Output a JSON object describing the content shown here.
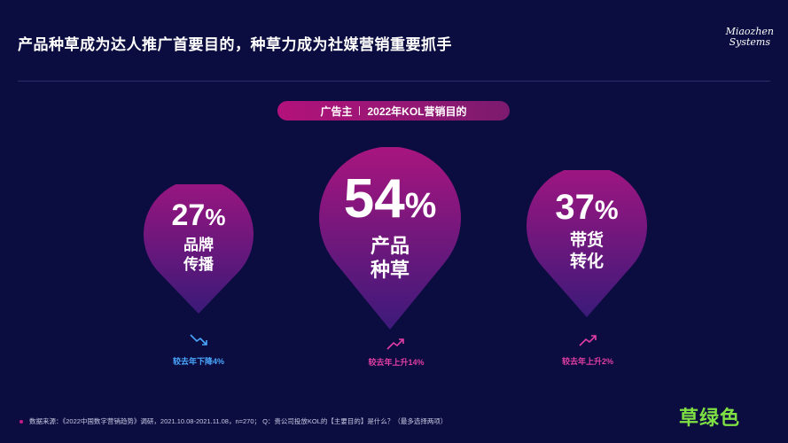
{
  "header": {
    "title": "产品种草成为达人推广首要目的，种草力成为社媒营销重要抓手",
    "logo_line1": "Miaozhen",
    "logo_line2": "Systems"
  },
  "pill": {
    "left": "广告主",
    "right": "2022年KOL营销目的"
  },
  "pins": [
    {
      "value": "27",
      "unit": "%",
      "label_line1": "品牌",
      "label_line2": "传播",
      "trend": "较去年下降4%",
      "trend_direction": "down",
      "trend_color": "#4aa8ff"
    },
    {
      "value": "54",
      "unit": "%",
      "label_line1": "产品",
      "label_line2": "种草",
      "trend": "较去年上升14%",
      "trend_direction": "up",
      "trend_color": "#e23ea5"
    },
    {
      "value": "37",
      "unit": "%",
      "label_line1": "带货",
      "label_line2": "转化",
      "trend": "较去年上升2%",
      "trend_direction": "up",
      "trend_color": "#e23ea5"
    }
  ],
  "footer": {
    "source": "数据来源：《2022中国数字营销趋势》调研，2021.10.08-2021.11.08，n=270； Q：贵公司投放KOL的【主要目的】是什么？（最多选择两项）"
  },
  "watermark": "草绿色",
  "colors": {
    "background": "#0b0c3f",
    "accent": "#b3127a",
    "down": "#4aa8ff",
    "up": "#e23ea5"
  }
}
